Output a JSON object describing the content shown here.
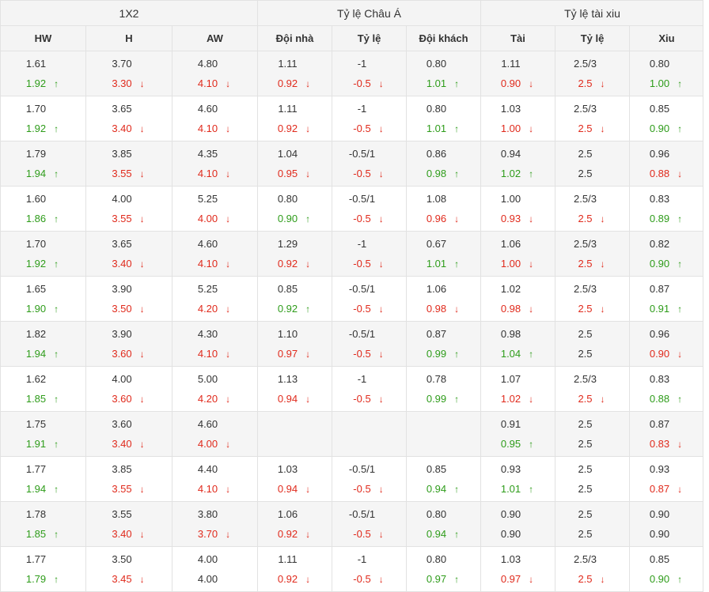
{
  "groups": [
    "1X2",
    "Tỷ lệ Châu Á",
    "Tỷ lệ tài xiu"
  ],
  "columns": [
    "HW",
    "H",
    "AW",
    "Đội nhà",
    "Tỷ lệ",
    "Đội khách",
    "Tài",
    "Tỷ lệ",
    "Xiu"
  ],
  "colors": {
    "up": "#2e9c1a",
    "down": "#e02a1c",
    "neutral": "#333333"
  },
  "rows": [
    {
      "cells": [
        {
          "top": "1.61",
          "bot": "1.92",
          "dir": "up"
        },
        {
          "top": "3.70",
          "bot": "3.30",
          "dir": "down"
        },
        {
          "top": "4.80",
          "bot": "4.10",
          "dir": "down"
        },
        {
          "top": "1.11",
          "bot": "0.92",
          "dir": "down"
        },
        {
          "top": "-1",
          "bot": "-0.5",
          "dir": "down"
        },
        {
          "top": "0.80",
          "bot": "1.01",
          "dir": "up"
        },
        {
          "top": "1.11",
          "bot": "0.90",
          "dir": "down"
        },
        {
          "top": "2.5/3",
          "bot": "2.5",
          "dir": "down"
        },
        {
          "top": "0.80",
          "bot": "1.00",
          "dir": "up"
        }
      ]
    },
    {
      "cells": [
        {
          "top": "1.70",
          "bot": "1.92",
          "dir": "up"
        },
        {
          "top": "3.65",
          "bot": "3.40",
          "dir": "down"
        },
        {
          "top": "4.60",
          "bot": "4.10",
          "dir": "down"
        },
        {
          "top": "1.11",
          "bot": "0.92",
          "dir": "down"
        },
        {
          "top": "-1",
          "bot": "-0.5",
          "dir": "down"
        },
        {
          "top": "0.80",
          "bot": "1.01",
          "dir": "up"
        },
        {
          "top": "1.03",
          "bot": "1.00",
          "dir": "down"
        },
        {
          "top": "2.5/3",
          "bot": "2.5",
          "dir": "down"
        },
        {
          "top": "0.85",
          "bot": "0.90",
          "dir": "up"
        }
      ]
    },
    {
      "cells": [
        {
          "top": "1.79",
          "bot": "1.94",
          "dir": "up"
        },
        {
          "top": "3.85",
          "bot": "3.55",
          "dir": "down"
        },
        {
          "top": "4.35",
          "bot": "4.10",
          "dir": "down"
        },
        {
          "top": "1.04",
          "bot": "0.95",
          "dir": "down"
        },
        {
          "top": "-0.5/1",
          "bot": "-0.5",
          "dir": "down"
        },
        {
          "top": "0.86",
          "bot": "0.98",
          "dir": "up"
        },
        {
          "top": "0.94",
          "bot": "1.02",
          "dir": "up"
        },
        {
          "top": "2.5",
          "bot": "2.5",
          "dir": "none"
        },
        {
          "top": "0.96",
          "bot": "0.88",
          "dir": "down"
        }
      ]
    },
    {
      "cells": [
        {
          "top": "1.60",
          "bot": "1.86",
          "dir": "up"
        },
        {
          "top": "4.00",
          "bot": "3.55",
          "dir": "down"
        },
        {
          "top": "5.25",
          "bot": "4.00",
          "dir": "down"
        },
        {
          "top": "0.80",
          "bot": "0.90",
          "dir": "up"
        },
        {
          "top": "-0.5/1",
          "bot": "-0.5",
          "dir": "down"
        },
        {
          "top": "1.08",
          "bot": "0.96",
          "dir": "down"
        },
        {
          "top": "1.00",
          "bot": "0.93",
          "dir": "down"
        },
        {
          "top": "2.5/3",
          "bot": "2.5",
          "dir": "down"
        },
        {
          "top": "0.83",
          "bot": "0.89",
          "dir": "up"
        }
      ]
    },
    {
      "cells": [
        {
          "top": "1.70",
          "bot": "1.92",
          "dir": "up"
        },
        {
          "top": "3.65",
          "bot": "3.40",
          "dir": "down"
        },
        {
          "top": "4.60",
          "bot": "4.10",
          "dir": "down"
        },
        {
          "top": "1.29",
          "bot": "0.92",
          "dir": "down"
        },
        {
          "top": "-1",
          "bot": "-0.5",
          "dir": "down"
        },
        {
          "top": "0.67",
          "bot": "1.01",
          "dir": "up"
        },
        {
          "top": "1.06",
          "bot": "1.00",
          "dir": "down"
        },
        {
          "top": "2.5/3",
          "bot": "2.5",
          "dir": "down"
        },
        {
          "top": "0.82",
          "bot": "0.90",
          "dir": "up"
        }
      ]
    },
    {
      "cells": [
        {
          "top": "1.65",
          "bot": "1.90",
          "dir": "up"
        },
        {
          "top": "3.90",
          "bot": "3.50",
          "dir": "down"
        },
        {
          "top": "5.25",
          "bot": "4.20",
          "dir": "down"
        },
        {
          "top": "0.85",
          "bot": "0.92",
          "dir": "up"
        },
        {
          "top": "-0.5/1",
          "bot": "-0.5",
          "dir": "down"
        },
        {
          "top": "1.06",
          "bot": "0.98",
          "dir": "down"
        },
        {
          "top": "1.02",
          "bot": "0.98",
          "dir": "down"
        },
        {
          "top": "2.5/3",
          "bot": "2.5",
          "dir": "down"
        },
        {
          "top": "0.87",
          "bot": "0.91",
          "dir": "up"
        }
      ]
    },
    {
      "cells": [
        {
          "top": "1.82",
          "bot": "1.94",
          "dir": "up"
        },
        {
          "top": "3.90",
          "bot": "3.60",
          "dir": "down"
        },
        {
          "top": "4.30",
          "bot": "4.10",
          "dir": "down"
        },
        {
          "top": "1.10",
          "bot": "0.97",
          "dir": "down"
        },
        {
          "top": "-0.5/1",
          "bot": "-0.5",
          "dir": "down"
        },
        {
          "top": "0.87",
          "bot": "0.99",
          "dir": "up"
        },
        {
          "top": "0.98",
          "bot": "1.04",
          "dir": "up"
        },
        {
          "top": "2.5",
          "bot": "2.5",
          "dir": "none"
        },
        {
          "top": "0.96",
          "bot": "0.90",
          "dir": "down"
        }
      ]
    },
    {
      "cells": [
        {
          "top": "1.62",
          "bot": "1.85",
          "dir": "up"
        },
        {
          "top": "4.00",
          "bot": "3.60",
          "dir": "down"
        },
        {
          "top": "5.00",
          "bot": "4.20",
          "dir": "down"
        },
        {
          "top": "1.13",
          "bot": "0.94",
          "dir": "down"
        },
        {
          "top": "-1",
          "bot": "-0.5",
          "dir": "down"
        },
        {
          "top": "0.78",
          "bot": "0.99",
          "dir": "up"
        },
        {
          "top": "1.07",
          "bot": "1.02",
          "dir": "down"
        },
        {
          "top": "2.5/3",
          "bot": "2.5",
          "dir": "down"
        },
        {
          "top": "0.83",
          "bot": "0.88",
          "dir": "up"
        }
      ]
    },
    {
      "cells": [
        {
          "top": "1.75",
          "bot": "1.91",
          "dir": "up"
        },
        {
          "top": "3.60",
          "bot": "3.40",
          "dir": "down"
        },
        {
          "top": "4.60",
          "bot": "4.00",
          "dir": "down"
        },
        {
          "top": "",
          "bot": "",
          "dir": "none"
        },
        {
          "top": "",
          "bot": "",
          "dir": "none"
        },
        {
          "top": "",
          "bot": "",
          "dir": "none"
        },
        {
          "top": "0.91",
          "bot": "0.95",
          "dir": "up"
        },
        {
          "top": "2.5",
          "bot": "2.5",
          "dir": "none"
        },
        {
          "top": "0.87",
          "bot": "0.83",
          "dir": "down"
        }
      ]
    },
    {
      "cells": [
        {
          "top": "1.77",
          "bot": "1.94",
          "dir": "up"
        },
        {
          "top": "3.85",
          "bot": "3.55",
          "dir": "down"
        },
        {
          "top": "4.40",
          "bot": "4.10",
          "dir": "down"
        },
        {
          "top": "1.03",
          "bot": "0.94",
          "dir": "down"
        },
        {
          "top": "-0.5/1",
          "bot": "-0.5",
          "dir": "down"
        },
        {
          "top": "0.85",
          "bot": "0.94",
          "dir": "up"
        },
        {
          "top": "0.93",
          "bot": "1.01",
          "dir": "up"
        },
        {
          "top": "2.5",
          "bot": "2.5",
          "dir": "none"
        },
        {
          "top": "0.93",
          "bot": "0.87",
          "dir": "down"
        }
      ]
    },
    {
      "cells": [
        {
          "top": "1.78",
          "bot": "1.85",
          "dir": "up"
        },
        {
          "top": "3.55",
          "bot": "3.40",
          "dir": "down"
        },
        {
          "top": "3.80",
          "bot": "3.70",
          "dir": "down"
        },
        {
          "top": "1.06",
          "bot": "0.92",
          "dir": "down"
        },
        {
          "top": "-0.5/1",
          "bot": "-0.5",
          "dir": "down"
        },
        {
          "top": "0.80",
          "bot": "0.94",
          "dir": "up"
        },
        {
          "top": "0.90",
          "bot": "0.90",
          "dir": "none"
        },
        {
          "top": "2.5",
          "bot": "2.5",
          "dir": "none"
        },
        {
          "top": "0.90",
          "bot": "0.90",
          "dir": "none"
        }
      ]
    },
    {
      "cells": [
        {
          "top": "1.77",
          "bot": "1.79",
          "dir": "up"
        },
        {
          "top": "3.50",
          "bot": "3.45",
          "dir": "down"
        },
        {
          "top": "4.00",
          "bot": "4.00",
          "dir": "none"
        },
        {
          "top": "1.11",
          "bot": "0.92",
          "dir": "down"
        },
        {
          "top": "-1",
          "bot": "-0.5",
          "dir": "down"
        },
        {
          "top": "0.80",
          "bot": "0.97",
          "dir": "up"
        },
        {
          "top": "1.03",
          "bot": "0.97",
          "dir": "down"
        },
        {
          "top": "2.5/3",
          "bot": "2.5",
          "dir": "down"
        },
        {
          "top": "0.85",
          "bot": "0.90",
          "dir": "up"
        }
      ]
    }
  ]
}
